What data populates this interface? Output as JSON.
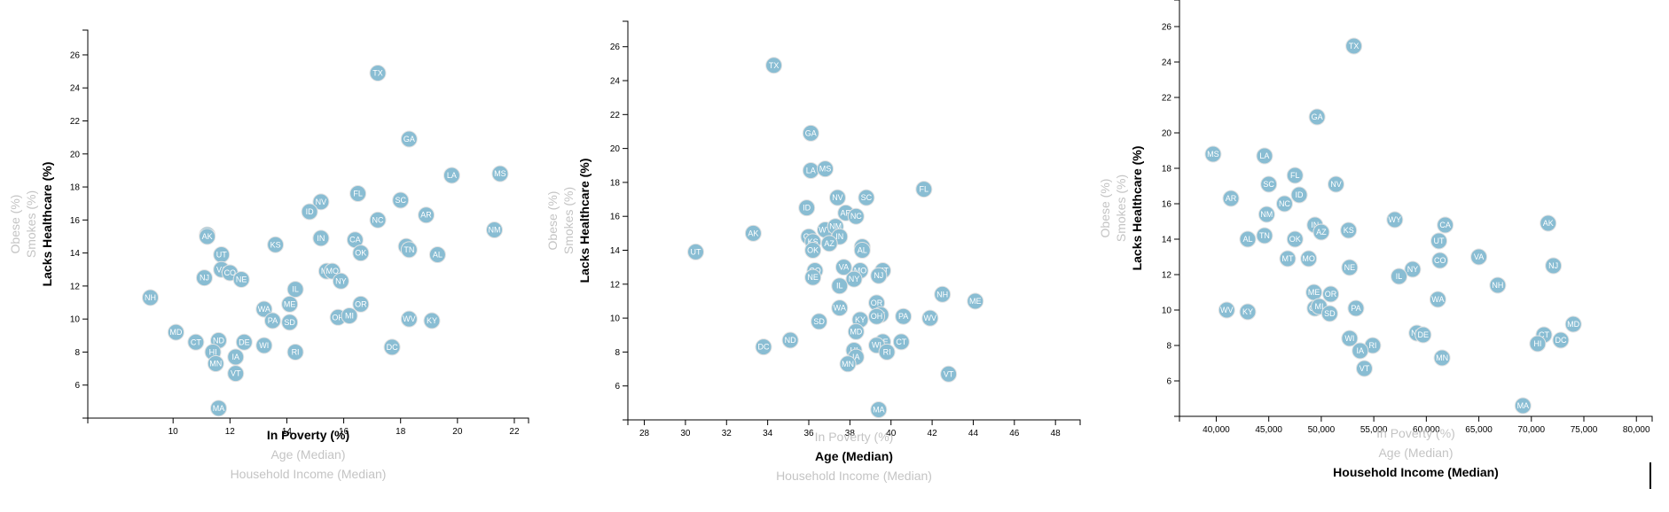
{
  "colors": {
    "circle": "#89bdd3",
    "circle_stroke": "#e3e3e3",
    "active": "#000000",
    "inactive": "#c4c4c4"
  },
  "chart_data": [
    {
      "type": "scatter",
      "x_labels": [
        "In Poverty (%)",
        "Age (Median)",
        "Household Income (Median)"
      ],
      "active_x": 0,
      "y_labels": [
        "Lacks Healthcare (%)",
        "Smokes (%)",
        "Obese (%)"
      ],
      "active_y": 0,
      "xlim": [
        7,
        22.5
      ],
      "ylim": [
        4,
        27.5
      ],
      "x_ticks": [
        "10",
        "12",
        "14",
        "16",
        "18",
        "20",
        "22"
      ],
      "y_ticks": [
        "6",
        "8",
        "10",
        "12",
        "14",
        "16",
        "18",
        "20",
        "22",
        "24",
        "26"
      ],
      "points": [
        {
          "label": "TX",
          "x": 17.2,
          "y": 24.9
        },
        {
          "label": "GA",
          "x": 18.3,
          "y": 20.9
        },
        {
          "label": "MS",
          "x": 21.5,
          "y": 18.8
        },
        {
          "label": "LA",
          "x": 19.8,
          "y": 18.7
        },
        {
          "label": "FL",
          "x": 16.5,
          "y": 17.6
        },
        {
          "label": "NV",
          "x": 15.2,
          "y": 17.1
        },
        {
          "label": "SC",
          "x": 18.0,
          "y": 17.2
        },
        {
          "label": "ID",
          "x": 14.8,
          "y": 16.5
        },
        {
          "label": "NC",
          "x": 17.2,
          "y": 16.0
        },
        {
          "label": "AR",
          "x": 18.9,
          "y": 16.3
        },
        {
          "label": "NM",
          "x": 21.3,
          "y": 15.4
        },
        {
          "label": "WY",
          "x": 11.2,
          "y": 15.1
        },
        {
          "label": "AK",
          "x": 11.2,
          "y": 15.0
        },
        {
          "label": "IN",
          "x": 15.2,
          "y": 14.9
        },
        {
          "label": "CA",
          "x": 16.4,
          "y": 14.8
        },
        {
          "label": "KS",
          "x": 13.6,
          "y": 14.5
        },
        {
          "label": "AZ",
          "x": 18.2,
          "y": 14.4
        },
        {
          "label": "TN",
          "x": 18.3,
          "y": 14.2
        },
        {
          "label": "OK",
          "x": 16.6,
          "y": 14.0
        },
        {
          "label": "AL",
          "x": 19.3,
          "y": 13.9
        },
        {
          "label": "UT",
          "x": 11.7,
          "y": 13.9
        },
        {
          "label": "VA",
          "x": 11.7,
          "y": 13.0
        },
        {
          "label": "CO",
          "x": 12.0,
          "y": 12.8
        },
        {
          "label": "MT",
          "x": 15.4,
          "y": 12.9
        },
        {
          "label": "MO",
          "x": 15.6,
          "y": 12.9
        },
        {
          "label": "NJ",
          "x": 11.1,
          "y": 12.5
        },
        {
          "label": "NE",
          "x": 12.4,
          "y": 12.4
        },
        {
          "label": "NY",
          "x": 15.9,
          "y": 12.3
        },
        {
          "label": "IL",
          "x": 14.3,
          "y": 11.8
        },
        {
          "label": "NH",
          "x": 9.2,
          "y": 11.3
        },
        {
          "label": "ME",
          "x": 14.1,
          "y": 10.9
        },
        {
          "label": "OR",
          "x": 16.6,
          "y": 10.9
        },
        {
          "label": "WA",
          "x": 13.2,
          "y": 10.6
        },
        {
          "label": "PA",
          "x": 13.5,
          "y": 9.9
        },
        {
          "label": "SD",
          "x": 14.1,
          "y": 9.8
        },
        {
          "label": "OH",
          "x": 15.8,
          "y": 10.1
        },
        {
          "label": "MI",
          "x": 16.2,
          "y": 10.2
        },
        {
          "label": "WV",
          "x": 18.3,
          "y": 10.0
        },
        {
          "label": "KY",
          "x": 19.1,
          "y": 9.9
        },
        {
          "label": "MD",
          "x": 10.1,
          "y": 9.2
        },
        {
          "label": "CT",
          "x": 10.8,
          "y": 8.6
        },
        {
          "label": "ND",
          "x": 11.6,
          "y": 8.7
        },
        {
          "label": "DE",
          "x": 12.5,
          "y": 8.6
        },
        {
          "label": "WI",
          "x": 13.2,
          "y": 8.4
        },
        {
          "label": "DC",
          "x": 17.7,
          "y": 8.3
        },
        {
          "label": "HI",
          "x": 11.4,
          "y": 8.0
        },
        {
          "label": "RI",
          "x": 14.3,
          "y": 8.0
        },
        {
          "label": "IA",
          "x": 12.2,
          "y": 7.7
        },
        {
          "label": "MN",
          "x": 11.5,
          "y": 7.3
        },
        {
          "label": "VT",
          "x": 12.2,
          "y": 6.7
        },
        {
          "label": "MA",
          "x": 11.6,
          "y": 4.6
        }
      ]
    },
    {
      "type": "scatter",
      "x_labels": [
        "In Poverty (%)",
        "Age (Median)",
        "Household Income (Median)"
      ],
      "active_x": 1,
      "y_labels": [
        "Lacks Healthcare (%)",
        "Smokes (%)",
        "Obese (%)"
      ],
      "active_y": 0,
      "xlim": [
        27.2,
        49.2
      ],
      "ylim": [
        4,
        27.5
      ],
      "x_ticks": [
        "28",
        "30",
        "32",
        "34",
        "36",
        "38",
        "40",
        "42",
        "44",
        "46",
        "48"
      ],
      "y_ticks": [
        "6",
        "8",
        "10",
        "12",
        "14",
        "16",
        "18",
        "20",
        "22",
        "24",
        "26"
      ],
      "points": [
        {
          "label": "TX",
          "x": 34.3,
          "y": 24.9
        },
        {
          "label": "GA",
          "x": 36.1,
          "y": 20.9
        },
        {
          "label": "LA",
          "x": 36.1,
          "y": 18.7
        },
        {
          "label": "MS",
          "x": 36.8,
          "y": 18.8
        },
        {
          "label": "FL",
          "x": 41.6,
          "y": 17.6
        },
        {
          "label": "NV",
          "x": 37.4,
          "y": 17.1
        },
        {
          "label": "SC",
          "x": 38.8,
          "y": 17.1
        },
        {
          "label": "ID",
          "x": 35.9,
          "y": 16.5
        },
        {
          "label": "AR",
          "x": 37.8,
          "y": 16.2
        },
        {
          "label": "NC",
          "x": 38.3,
          "y": 16.0
        },
        {
          "label": "AK",
          "x": 33.3,
          "y": 15.0
        },
        {
          "label": "WY",
          "x": 36.8,
          "y": 15.2
        },
        {
          "label": "NM",
          "x": 37.3,
          "y": 15.4
        },
        {
          "label": "CA",
          "x": 36.0,
          "y": 14.8
        },
        {
          "label": "IN",
          "x": 37.5,
          "y": 14.8
        },
        {
          "label": "KS",
          "x": 36.2,
          "y": 14.5
        },
        {
          "label": "AZ",
          "x": 37.0,
          "y": 14.4
        },
        {
          "label": "TN",
          "x": 38.6,
          "y": 14.2
        },
        {
          "label": "AL",
          "x": 38.6,
          "y": 14.0
        },
        {
          "label": "OK",
          "x": 36.2,
          "y": 14.0
        },
        {
          "label": "UT",
          "x": 30.5,
          "y": 13.9
        },
        {
          "label": "VA",
          "x": 37.7,
          "y": 13.0
        },
        {
          "label": "MO",
          "x": 38.5,
          "y": 12.8
        },
        {
          "label": "MT",
          "x": 39.6,
          "y": 12.8
        },
        {
          "label": "CO",
          "x": 36.3,
          "y": 12.8
        },
        {
          "label": "NE",
          "x": 36.2,
          "y": 12.4
        },
        {
          "label": "NJ",
          "x": 39.4,
          "y": 12.5
        },
        {
          "label": "NY",
          "x": 38.2,
          "y": 12.3
        },
        {
          "label": "IL",
          "x": 37.5,
          "y": 11.9
        },
        {
          "label": "NH",
          "x": 42.5,
          "y": 11.4
        },
        {
          "label": "ME",
          "x": 44.1,
          "y": 11.0
        },
        {
          "label": "OR",
          "x": 39.3,
          "y": 10.9
        },
        {
          "label": "WA",
          "x": 37.5,
          "y": 10.6
        },
        {
          "label": "MI",
          "x": 39.5,
          "y": 10.2
        },
        {
          "label": "OH",
          "x": 39.3,
          "y": 10.1
        },
        {
          "label": "PA",
          "x": 40.6,
          "y": 10.1
        },
        {
          "label": "WV",
          "x": 41.9,
          "y": 10.0
        },
        {
          "label": "KY",
          "x": 38.5,
          "y": 9.9
        },
        {
          "label": "SD",
          "x": 36.5,
          "y": 9.8
        },
        {
          "label": "MD",
          "x": 38.3,
          "y": 9.2
        },
        {
          "label": "ND",
          "x": 35.1,
          "y": 8.7
        },
        {
          "label": "DC",
          "x": 33.8,
          "y": 8.3
        },
        {
          "label": "DE",
          "x": 39.6,
          "y": 8.6
        },
        {
          "label": "CT",
          "x": 40.5,
          "y": 8.6
        },
        {
          "label": "WI",
          "x": 39.3,
          "y": 8.4
        },
        {
          "label": "HI",
          "x": 38.2,
          "y": 8.1
        },
        {
          "label": "RI",
          "x": 39.8,
          "y": 8.0
        },
        {
          "label": "IA",
          "x": 38.3,
          "y": 7.7
        },
        {
          "label": "MN",
          "x": 37.9,
          "y": 7.3
        },
        {
          "label": "VT",
          "x": 42.8,
          "y": 6.7
        },
        {
          "label": "MA",
          "x": 39.4,
          "y": 4.6
        }
      ]
    },
    {
      "type": "scatter",
      "x_labels": [
        "In Poverty (%)",
        "Age (Median)",
        "Household Income (Median)"
      ],
      "active_x": 2,
      "y_labels": [
        "Lacks Healthcare (%)",
        "Smokes (%)",
        "Obese (%)"
      ],
      "active_y": 0,
      "xlim": [
        36500,
        81500
      ],
      "ylim": [
        4,
        27.5
      ],
      "x_ticks": [
        "40,000",
        "45,000",
        "50,000",
        "55,000",
        "60,000",
        "65,000",
        "70,000",
        "75,000",
        "80,000"
      ],
      "y_ticks": [
        "6",
        "8",
        "10",
        "12",
        "14",
        "16",
        "18",
        "20",
        "22",
        "24",
        "26"
      ],
      "points": [
        {
          "label": "TX",
          "x": 53100,
          "y": 24.9
        },
        {
          "label": "GA",
          "x": 49600,
          "y": 20.9
        },
        {
          "label": "MS",
          "x": 39700,
          "y": 18.8
        },
        {
          "label": "LA",
          "x": 44600,
          "y": 18.7
        },
        {
          "label": "FL",
          "x": 47500,
          "y": 17.6
        },
        {
          "label": "SC",
          "x": 45000,
          "y": 17.1
        },
        {
          "label": "NV",
          "x": 51400,
          "y": 17.1
        },
        {
          "label": "AR",
          "x": 41400,
          "y": 16.3
        },
        {
          "label": "ID",
          "x": 47900,
          "y": 16.5
        },
        {
          "label": "NC",
          "x": 46500,
          "y": 16.0
        },
        {
          "label": "NM",
          "x": 44800,
          "y": 15.4
        },
        {
          "label": "WY",
          "x": 57000,
          "y": 15.1
        },
        {
          "label": "AK",
          "x": 71600,
          "y": 14.9
        },
        {
          "label": "CA",
          "x": 61800,
          "y": 14.8
        },
        {
          "label": "IN",
          "x": 49400,
          "y": 14.8
        },
        {
          "label": "KS",
          "x": 52600,
          "y": 14.5
        },
        {
          "label": "AZ",
          "x": 50000,
          "y": 14.4
        },
        {
          "label": "TN",
          "x": 44600,
          "y": 14.2
        },
        {
          "label": "AL",
          "x": 43000,
          "y": 14.0
        },
        {
          "label": "OK",
          "x": 47500,
          "y": 14.0
        },
        {
          "label": "UT",
          "x": 61200,
          "y": 13.9
        },
        {
          "label": "VA",
          "x": 65000,
          "y": 13.0
        },
        {
          "label": "MT",
          "x": 46800,
          "y": 12.9
        },
        {
          "label": "MO",
          "x": 48800,
          "y": 12.9
        },
        {
          "label": "CO",
          "x": 61300,
          "y": 12.8
        },
        {
          "label": "NJ",
          "x": 72100,
          "y": 12.5
        },
        {
          "label": "NE",
          "x": 52700,
          "y": 12.4
        },
        {
          "label": "NY",
          "x": 58700,
          "y": 12.3
        },
        {
          "label": "IL",
          "x": 57400,
          "y": 11.9
        },
        {
          "label": "NH",
          "x": 66800,
          "y": 11.4
        },
        {
          "label": "ME",
          "x": 49300,
          "y": 11.0
        },
        {
          "label": "OR",
          "x": 50900,
          "y": 10.9
        },
        {
          "label": "WA",
          "x": 61100,
          "y": 10.6
        },
        {
          "label": "WV",
          "x": 41000,
          "y": 10.0
        },
        {
          "label": "KY",
          "x": 43000,
          "y": 9.9
        },
        {
          "label": "OH",
          "x": 49400,
          "y": 10.1
        },
        {
          "label": "MI",
          "x": 49800,
          "y": 10.2
        },
        {
          "label": "PA",
          "x": 53300,
          "y": 10.1
        },
        {
          "label": "SD",
          "x": 50800,
          "y": 9.8
        },
        {
          "label": "MD",
          "x": 74000,
          "y": 9.2
        },
        {
          "label": "ND",
          "x": 59100,
          "y": 8.7
        },
        {
          "label": "DE",
          "x": 59700,
          "y": 8.6
        },
        {
          "label": "CT",
          "x": 71200,
          "y": 8.6
        },
        {
          "label": "WI",
          "x": 52700,
          "y": 8.4
        },
        {
          "label": "DC",
          "x": 72800,
          "y": 8.3
        },
        {
          "label": "HI",
          "x": 70600,
          "y": 8.1
        },
        {
          "label": "RI",
          "x": 54900,
          "y": 8.0
        },
        {
          "label": "IA",
          "x": 53700,
          "y": 7.7
        },
        {
          "label": "MN",
          "x": 61500,
          "y": 7.3
        },
        {
          "label": "VT",
          "x": 54100,
          "y": 6.7
        },
        {
          "label": "MA",
          "x": 69200,
          "y": 4.6
        }
      ]
    }
  ]
}
